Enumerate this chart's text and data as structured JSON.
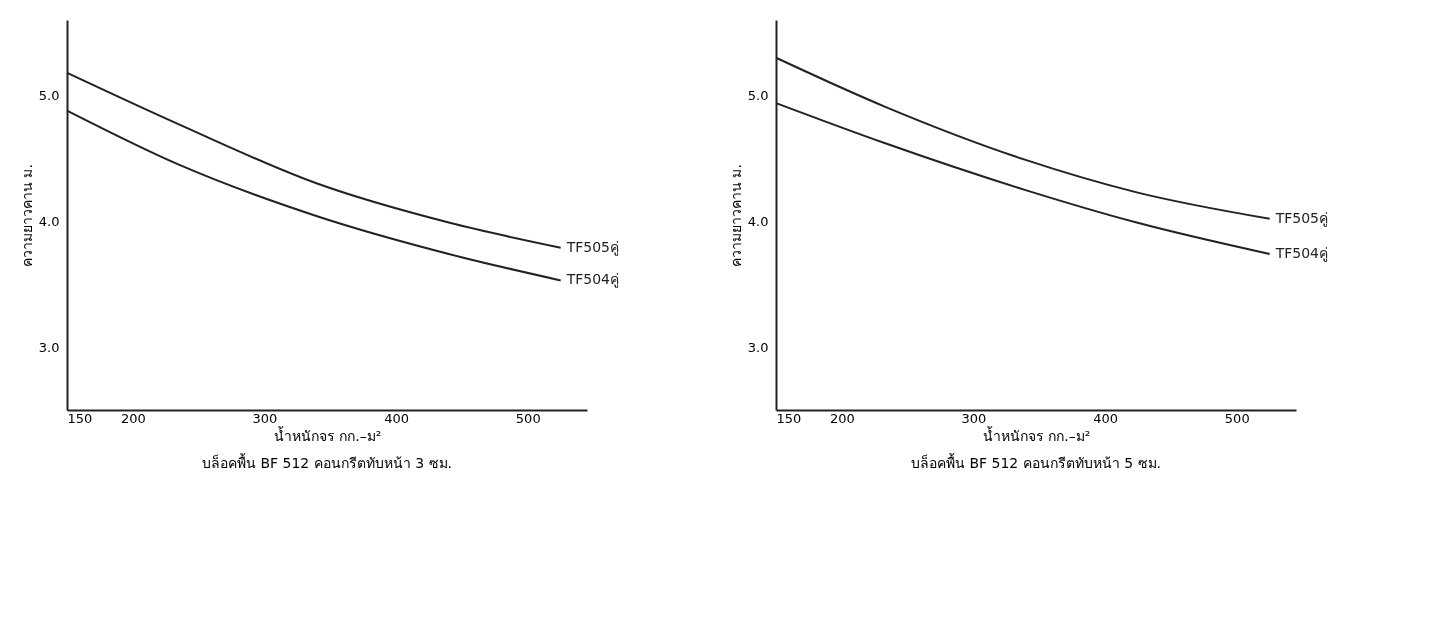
{
  "chart_data": [
    {
      "type": "line",
      "title": "บล็อคพื้น BF 512 คอนกรีตทับหน้า 3 ซม.",
      "xlabel": "น้ำหนักจร กก.–ม²",
      "ylabel": "ความยาวคาน ม.",
      "x": [
        150,
        235,
        340,
        440,
        525
      ],
      "series": [
        {
          "name": "TF505คู่",
          "color": "#222222",
          "values": [
            5.18,
            4.77,
            4.3,
            3.99,
            3.79
          ]
        },
        {
          "name": "TF504คู่",
          "color": "#222222",
          "values": [
            4.88,
            4.45,
            4.04,
            3.74,
            3.53
          ]
        }
      ],
      "xlim": [
        150,
        545
      ],
      "xticks": [
        150,
        200,
        300,
        400,
        500
      ],
      "ylim": [
        2.5,
        5.6
      ],
      "yticks": [
        {
          "value": 3,
          "label": "3.0"
        },
        {
          "value": 4,
          "label": "4.0"
        },
        {
          "value": 5,
          "label": "5.0"
        }
      ],
      "grid": false,
      "legend": false
    },
    {
      "type": "line",
      "title": "บล็อคพื้น BF 512 คอนกรีตทับหน้า 5 ซม.",
      "xlabel": "น้ำหนักจร กก.–ม²",
      "ylabel": "ความยาวคาน ม.",
      "x": [
        150,
        233,
        339,
        424,
        525
      ],
      "series": [
        {
          "name": "TF505คู่",
          "color": "#222222",
          "values": [
            5.3,
            4.91,
            4.49,
            4.23,
            4.02
          ]
        },
        {
          "name": "TF504คู่",
          "color": "#222222",
          "values": [
            4.94,
            4.62,
            4.25,
            3.99,
            3.74
          ]
        }
      ],
      "xlim": [
        150,
        545
      ],
      "xticks": [
        150,
        200,
        300,
        400,
        500
      ],
      "ylim": [
        2.5,
        5.6
      ],
      "yticks": [
        {
          "value": 3,
          "label": "3.0"
        },
        {
          "value": 4,
          "label": "4.0"
        },
        {
          "value": 5,
          "label": "5.0"
        }
      ],
      "grid": false,
      "legend": false
    }
  ]
}
